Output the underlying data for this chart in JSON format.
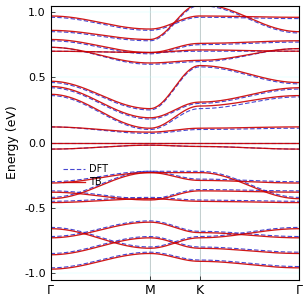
{
  "xlabel_ticks": [
    "Γ",
    "M",
    "K",
    "Γ"
  ],
  "ylabel": "Energy (eV)",
  "ylim": [
    -1.05,
    1.05
  ],
  "yticks": [
    -1.0,
    -0.5,
    0.0,
    0.5,
    1.0
  ],
  "legend_dft": "DFT",
  "legend_tb": "TB",
  "dft_color": "#3333cc",
  "tb_color": "#cc0000",
  "figsize": [
    3.08,
    3.03
  ],
  "dpi": 100,
  "seg1": 80,
  "seg2": 40,
  "seg3": 80
}
